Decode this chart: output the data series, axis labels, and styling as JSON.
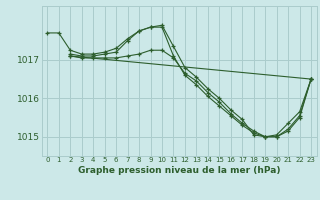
{
  "title": "Graphe pression niveau de la mer (hPa)",
  "bg_color": "#cce8e8",
  "grid_color": "#aacccc",
  "line_color": "#2d5e2d",
  "xlim": [
    -0.5,
    23.5
  ],
  "ylim": [
    1014.5,
    1018.4
  ],
  "yticks": [
    1015,
    1016,
    1017
  ],
  "xticks": [
    0,
    1,
    2,
    3,
    4,
    5,
    6,
    7,
    8,
    9,
    10,
    11,
    12,
    13,
    14,
    15,
    16,
    17,
    18,
    19,
    20,
    21,
    22,
    23
  ],
  "series": [
    {
      "x": [
        0,
        1,
        2,
        3,
        4,
        5,
        6,
        7,
        8,
        9,
        10,
        11,
        12,
        13,
        14,
        15,
        16,
        17,
        18,
        19,
        20,
        21,
        22,
        23
      ],
      "y": [
        1017.7,
        1017.7,
        1017.25,
        1017.15,
        1017.15,
        1017.2,
        1017.3,
        1017.55,
        1017.75,
        1017.85,
        1017.9,
        1017.35,
        1016.8,
        1016.55,
        1016.25,
        1016.0,
        1015.7,
        1015.45,
        1015.05,
        1015.0,
        1015.05,
        1015.35,
        1015.65,
        1016.5
      ]
    },
    {
      "x": [
        2,
        3,
        4,
        5,
        6,
        7,
        8,
        9,
        10,
        11,
        12,
        13,
        14,
        15,
        16,
        17,
        18,
        19,
        20,
        21,
        22,
        23
      ],
      "y": [
        1017.15,
        1017.1,
        1017.1,
        1017.15,
        1017.2,
        1017.5,
        1017.75,
        1017.85,
        1017.85,
        1017.1,
        1016.6,
        1016.35,
        1016.05,
        1015.8,
        1015.55,
        1015.3,
        1015.1,
        1015.0,
        1015.0,
        1015.2,
        1015.55,
        1016.5
      ]
    },
    {
      "x": [
        2,
        3,
        4,
        5,
        6,
        7,
        8,
        9,
        10,
        11,
        12,
        13,
        14,
        15,
        16,
        17,
        18,
        19,
        20,
        21,
        22,
        23
      ],
      "y": [
        1017.1,
        1017.05,
        1017.05,
        1017.05,
        1017.05,
        1017.1,
        1017.15,
        1017.25,
        1017.25,
        1017.05,
        1016.65,
        1016.45,
        1016.15,
        1015.9,
        1015.6,
        1015.35,
        1015.15,
        1015.0,
        1015.0,
        1015.15,
        1015.5,
        1016.5
      ]
    },
    {
      "x": [
        2,
        23
      ],
      "y": [
        1017.1,
        1016.5
      ]
    }
  ]
}
